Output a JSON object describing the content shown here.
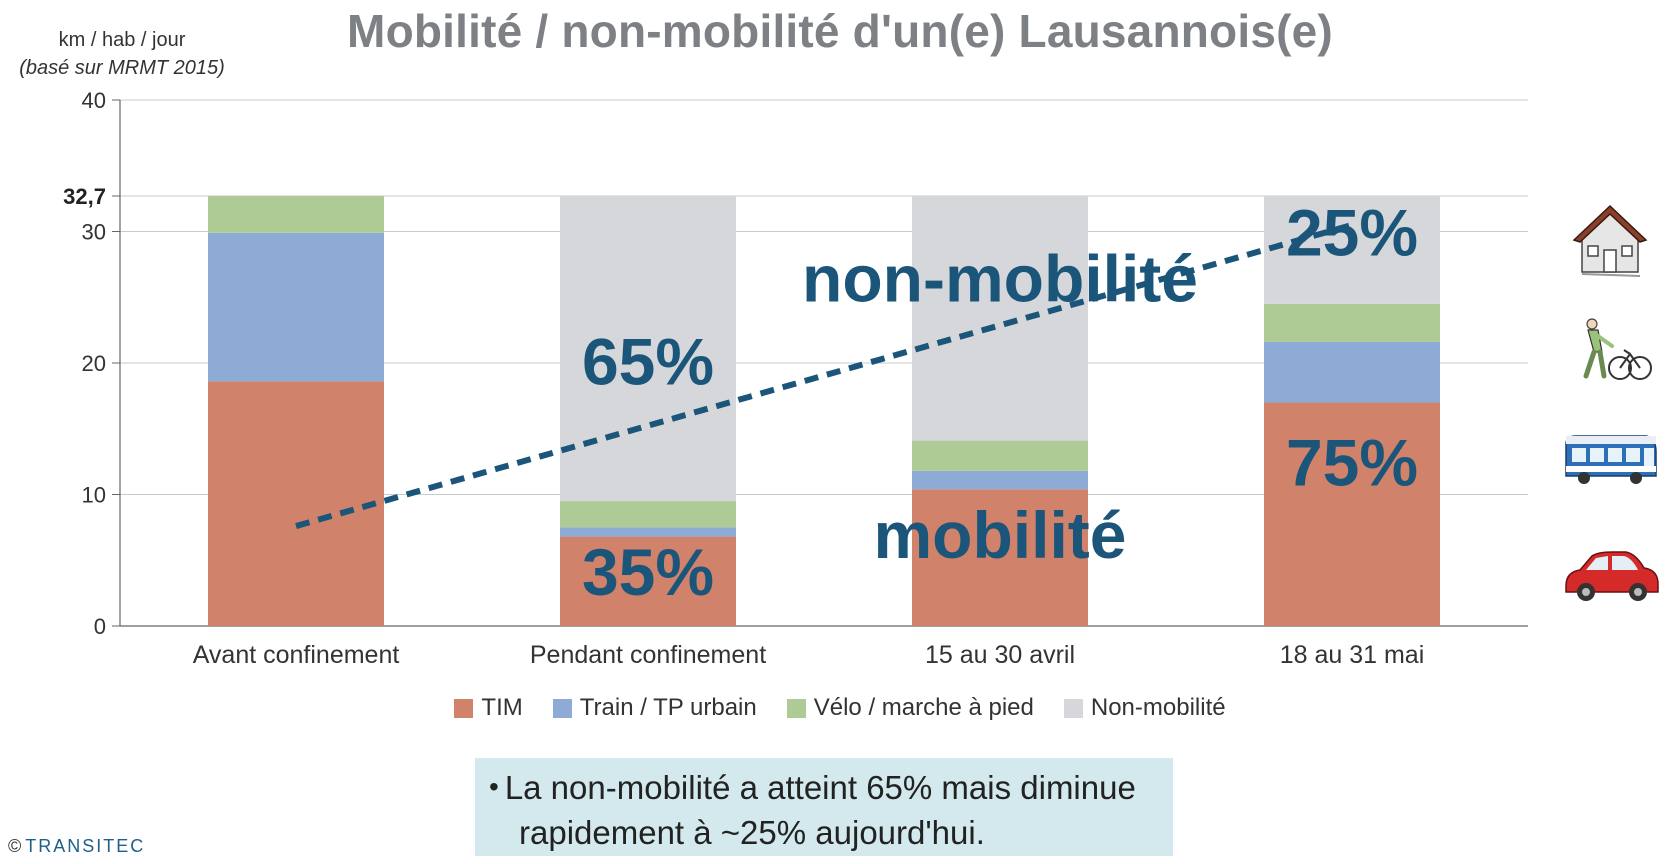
{
  "title": "Mobilité / non-mobilité d'un(e) Lausannois(e)",
  "unit_label": "km / hab / jour",
  "unit_note": "(basé sur MRMT 2015)",
  "chart_data": {
    "type": "bar",
    "stacked": true,
    "title": "Mobilité / non-mobilité d'un(e) Lausannois(e)",
    "ylabel": "km / hab / jour",
    "ylim": [
      0,
      40
    ],
    "yticks": [
      0,
      10,
      20,
      30,
      40
    ],
    "extra_ytick": {
      "value": 32.7,
      "label": "32,7"
    },
    "grid": true,
    "legend_position": "bottom",
    "categories": [
      "Avant confinement",
      "Pendant confinement",
      "15 au 30 avril",
      "18 au 31 mai"
    ],
    "series": [
      {
        "name": "TIM",
        "color": "#d0826b",
        "values": [
          18.6,
          6.8,
          10.4,
          17.0
        ]
      },
      {
        "name": "Train / TP urbain",
        "color": "#8eabd6",
        "values": [
          11.3,
          0.7,
          1.4,
          4.6
        ]
      },
      {
        "name": "Vélo / marche à pied",
        "color": "#aecb96",
        "values": [
          2.8,
          2.0,
          2.3,
          2.9
        ]
      },
      {
        "name": "Non-mobilité",
        "color": "#d5d7da",
        "values": [
          0,
          23.2,
          18.6,
          8.2
        ]
      }
    ],
    "annotations": [
      {
        "text": "65%",
        "category": "Pendant confinement",
        "y": 20.2
      },
      {
        "text": "35%",
        "category": "Pendant confinement",
        "y": 4.2
      },
      {
        "text": "25%",
        "category": "18 au 31 mai",
        "y": 30.0
      },
      {
        "text": "75%",
        "category": "18 au 31 mai",
        "y": 12.5
      },
      {
        "text": "non-mobilité",
        "category": "15 au 30 avril",
        "y": 26.5
      },
      {
        "text": "mobilité",
        "category": "15 au 30 avril",
        "y": 7.0
      }
    ],
    "trend_line": {
      "style": "dashed",
      "color": "#1b567a",
      "from": {
        "x": 0.5,
        "y": 7.6
      },
      "to": {
        "x": 3.5,
        "y": 30.5
      }
    }
  },
  "legend": [
    {
      "label": "TIM",
      "color": "#d0826b"
    },
    {
      "label": "Train / TP urbain",
      "color": "#8eabd6"
    },
    {
      "label": "Vélo / marche à pied",
      "color": "#aecb96"
    },
    {
      "label": "Non-mobilité",
      "color": "#d5d7da"
    }
  ],
  "note": {
    "bullet": "•",
    "line1": "La non-mobilité a atteint 65% mais diminue",
    "line2": "rapidement à ~25% aujourd'hui."
  },
  "copyright": {
    "symbol": "©",
    "brand": "TRANSITEC"
  },
  "icons": [
    "house-icon",
    "pedestrian-bicycle-icon",
    "bus-icon",
    "car-icon"
  ]
}
